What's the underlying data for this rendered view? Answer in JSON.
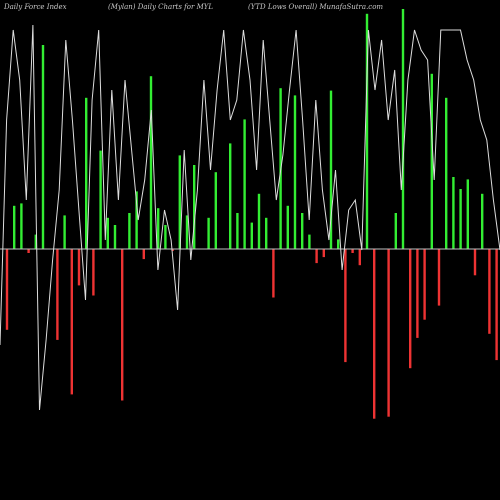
{
  "header": {
    "left": "Daily Force  Index",
    "center": "(Mylan) Daily Charts for MYL",
    "right": "(YTD Lows Overall) MunafaSutra.com"
  },
  "chart_data": {
    "type": "bar",
    "title": "",
    "xlabel": "",
    "ylabel": "",
    "zero_line_color": "#c0c0c0",
    "positive_color": "#33ee33",
    "negative_color": "#ee3333",
    "price_line_color": "#dddddd",
    "ylim": [
      -1.0,
      1.0
    ],
    "values": [
      -0.4,
      0.18,
      0.19,
      -0.02,
      0.06,
      0.85,
      0.0,
      -0.45,
      0.14,
      -0.72,
      -0.18,
      0.63,
      -0.23,
      0.41,
      0.13,
      0.1,
      -0.75,
      0.15,
      0.24,
      -0.05,
      0.72,
      0.17,
      0.1,
      -0.01,
      0.39,
      0.14,
      0.35,
      0.0,
      0.13,
      0.32,
      0.0,
      0.44,
      0.15,
      0.54,
      0.11,
      0.23,
      0.13,
      -0.24,
      0.67,
      0.18,
      0.64,
      0.15,
      0.06,
      -0.07,
      -0.04,
      0.66,
      0.04,
      -0.56,
      -0.02,
      -0.08,
      0.98,
      -0.84,
      0.0,
      -0.83,
      0.15,
      1.0,
      -0.59,
      -0.44,
      -0.35,
      0.73,
      -0.28,
      0.63,
      0.3,
      0.25,
      0.29,
      -0.13,
      0.23,
      -0.42,
      -0.55,
      -0.98,
      -0.95,
      -0.89,
      0.12,
      0.15,
      0.02,
      -0.21,
      0.03
    ],
    "price_line": [
      155,
      380,
      470,
      420,
      300,
      475,
      90,
      160,
      240,
      310,
      460,
      380,
      290,
      200,
      400,
      470,
      260,
      410,
      300,
      420,
      350,
      280,
      320,
      390,
      230,
      290,
      260,
      190,
      350,
      240,
      310,
      420,
      330,
      410,
      470,
      380,
      400,
      470,
      420,
      330,
      460,
      380,
      300,
      345,
      410,
      470,
      380,
      280,
      400,
      310,
      260,
      330,
      230,
      290,
      300,
      250,
      470,
      410,
      460,
      380,
      430,
      310,
      420,
      470,
      450,
      440,
      320,
      470,
      470,
      470,
      470,
      440,
      420,
      380,
      360,
      300,
      250
    ]
  }
}
